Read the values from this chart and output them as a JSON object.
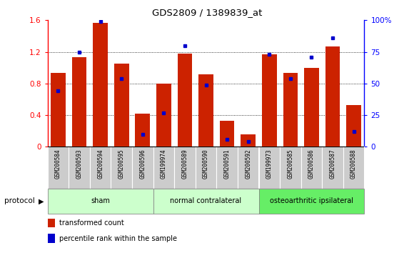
{
  "title": "GDS2809 / 1389839_at",
  "samples": [
    "GSM200584",
    "GSM200593",
    "GSM200594",
    "GSM200595",
    "GSM200596",
    "GSM199974",
    "GSM200589",
    "GSM200590",
    "GSM200591",
    "GSM200592",
    "GSM199973",
    "GSM200585",
    "GSM200586",
    "GSM200587",
    "GSM200588"
  ],
  "red_values": [
    0.93,
    1.13,
    1.57,
    1.05,
    0.42,
    0.8,
    1.18,
    0.92,
    0.33,
    0.16,
    1.17,
    0.93,
    1.0,
    1.27,
    0.53
  ],
  "blue_pct": [
    44,
    75,
    99,
    54,
    10,
    27,
    80,
    49,
    6,
    4,
    73,
    54,
    71,
    86,
    12
  ],
  "groups": [
    {
      "label": "sham",
      "start": 0,
      "end": 5,
      "color": "#ccffcc"
    },
    {
      "label": "normal contralateral",
      "start": 5,
      "end": 10,
      "color": "#ccffcc"
    },
    {
      "label": "osteoarthritic ipsilateral",
      "start": 10,
      "end": 15,
      "color": "#66ee66"
    }
  ],
  "ylim_left": [
    0,
    1.6
  ],
  "ylim_right": [
    0,
    100
  ],
  "yticks_left": [
    0,
    0.4,
    0.8,
    1.2,
    1.6
  ],
  "yticks_right": [
    0,
    25,
    50,
    75,
    100
  ],
  "ytick_labels_right": [
    "0",
    "25",
    "50",
    "75",
    "100%"
  ],
  "bar_color": "#cc2200",
  "dot_color": "#0000cc",
  "bar_width": 0.7,
  "background_color": "#ffffff",
  "label_red": "transformed count",
  "label_blue": "percentile rank within the sample",
  "protocol_label": "protocol"
}
